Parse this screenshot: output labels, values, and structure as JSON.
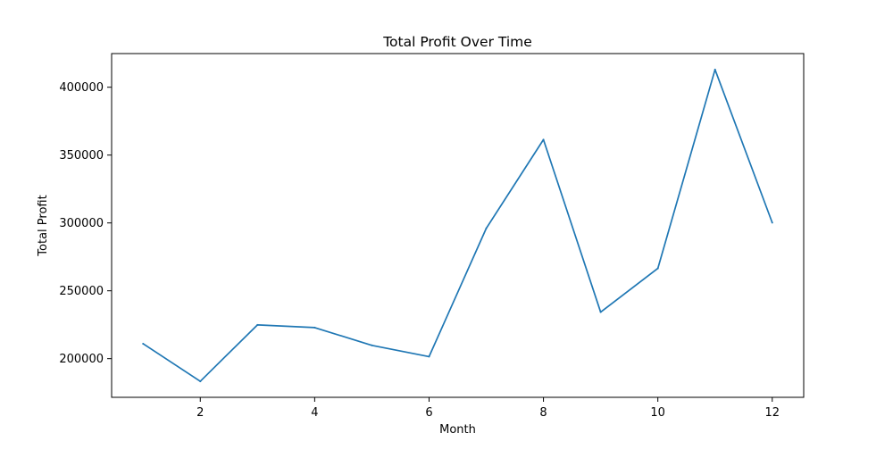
{
  "chart_data": {
    "type": "line",
    "title": "Total Profit Over Time",
    "xlabel": "Month",
    "ylabel": "Total Profit",
    "x": [
      1,
      2,
      3,
      4,
      5,
      6,
      7,
      8,
      9,
      10,
      11,
      12
    ],
    "series": [
      {
        "values": [
          211000,
          183300,
          224900,
          222900,
          209800,
          201500,
          296000,
          361400,
          234300,
          266500,
          413000,
          300200
        ],
        "color": "#1f77b4"
      }
    ],
    "xlim": [
      0.45,
      12.55
    ],
    "ylim": [
      171500,
      424800
    ],
    "xticks": [
      2,
      4,
      6,
      8,
      10,
      12
    ],
    "yticks": [
      200000,
      250000,
      300000,
      350000,
      400000
    ],
    "xtick_labels": [
      "2",
      "4",
      "6",
      "8",
      "10",
      "12"
    ],
    "ytick_labels": [
      "200000",
      "250000",
      "300000",
      "350000",
      "400000"
    ],
    "grid": false,
    "legend": false
  }
}
